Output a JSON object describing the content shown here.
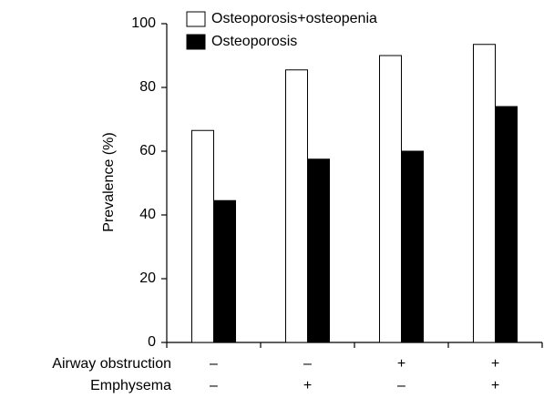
{
  "chart_data": {
    "type": "bar",
    "y_label": "Prevalence (%)",
    "category_rows": [
      "Airway obstruction",
      "Emphysema"
    ],
    "categories": [
      [
        "–",
        "–"
      ],
      [
        "–",
        "+"
      ],
      [
        "+",
        "–"
      ],
      [
        "+",
        "+"
      ]
    ],
    "series": [
      {
        "name": "Osteoporosis+osteopenia",
        "color": "#ffffff",
        "values": [
          66.5,
          85.5,
          90,
          93.5
        ]
      },
      {
        "name": "Osteoporosis",
        "color": "#000000",
        "values": [
          44.5,
          57.5,
          60,
          74
        ]
      }
    ],
    "ylim": [
      0,
      100
    ],
    "yticks": [
      0,
      20,
      40,
      60,
      80,
      100
    ],
    "grid": false
  }
}
